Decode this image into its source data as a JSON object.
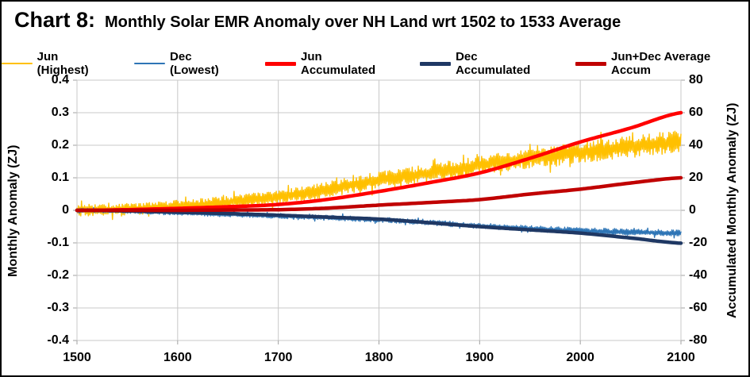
{
  "header": {
    "chart_label": "Chart 8:",
    "title": "Monthly Solar EMR Anomaly over NH Land wrt 1502 to 1533 Average"
  },
  "colors": {
    "jun_monthly": "#FFC000",
    "dec_monthly": "#2E75B6",
    "jun_accum": "#FF0000",
    "dec_accum": "#1F3864",
    "avg_accum": "#C00000",
    "gridline": "#C8C8C8",
    "tick": "#A0A0A0"
  },
  "axes": {
    "left": {
      "title": "Monthly Anomaly (ZJ)",
      "ticks": [
        "0.4",
        "0.3",
        "0.2",
        "0.1",
        "0",
        "-0.1",
        "-0.2",
        "-0.3",
        "-0.4"
      ]
    },
    "right": {
      "title": "Accumulated Monthly Anomaly (ZJ)",
      "ticks": [
        "80",
        "60",
        "40",
        "20",
        "0",
        "-20",
        "-40",
        "-60",
        "-80"
      ]
    },
    "x": {
      "ticks": [
        "1500",
        "1600",
        "1700",
        "1800",
        "1900",
        "2000",
        "2100"
      ]
    }
  },
  "chart_data": {
    "type": "line",
    "title": "Monthly Solar EMR Anomaly over NH Land wrt 1502 to 1533 Average",
    "x_range": [
      1500,
      2100
    ],
    "y_left": {
      "label": "Monthly Anomaly (ZJ)",
      "min": -0.4,
      "max": 0.4,
      "tick_step": 0.1
    },
    "y_right": {
      "label": "Accumulated Monthly Anomaly (ZJ)",
      "min": -80,
      "max": 80,
      "tick_step": 20,
      "scale_vs_left": 200
    },
    "grid": true,
    "legend_position": "top",
    "anchor_years": [
      1500,
      1550,
      1600,
      1650,
      1700,
      1750,
      1800,
      1850,
      1900,
      1950,
      2000,
      2050,
      2100
    ],
    "series": [
      {
        "name": "Jun (Highest)",
        "color": "#FFC000",
        "style": "noisy",
        "width": 1.4,
        "values": [
          0.0,
          0.004,
          0.012,
          0.025,
          0.042,
          0.065,
          0.093,
          0.115,
          0.138,
          0.16,
          0.178,
          0.195,
          0.21
        ],
        "noise_amp": [
          0.018,
          0.018,
          0.019,
          0.02,
          0.022,
          0.024,
          0.026,
          0.027,
          0.028,
          0.03,
          0.032,
          0.034,
          0.035
        ]
      },
      {
        "name": "Dec (Lowest)",
        "color": "#2E75B6",
        "style": "noisy",
        "width": 1.4,
        "values": [
          0.0,
          -0.003,
          -0.008,
          -0.013,
          -0.018,
          -0.023,
          -0.029,
          -0.038,
          -0.047,
          -0.056,
          -0.063,
          -0.067,
          -0.07
        ],
        "noise_amp": [
          0.006,
          0.006,
          0.007,
          0.007,
          0.007,
          0.008,
          0.008,
          0.008,
          0.009,
          0.009,
          0.01,
          0.01,
          0.01
        ]
      },
      {
        "name": "Jun Accumulated",
        "color": "#FF0000",
        "style": "smooth",
        "width": 4.5,
        "values": [
          0.0,
          0.002,
          0.006,
          0.011,
          0.018,
          0.034,
          0.058,
          0.085,
          0.115,
          0.16,
          0.21,
          0.253,
          0.3
        ]
      },
      {
        "name": "Dec Accumulated",
        "color": "#1F3864",
        "style": "smooth",
        "width": 4.5,
        "values": [
          0.0,
          -0.002,
          -0.006,
          -0.01,
          -0.015,
          -0.021,
          -0.027,
          -0.038,
          -0.05,
          -0.06,
          -0.07,
          -0.085,
          -0.101
        ]
      },
      {
        "name": "Jun+Dec Average Accum",
        "color": "#C00000",
        "style": "smooth",
        "width": 4.5,
        "values": [
          0.0,
          0.0,
          0.0,
          0.001,
          0.002,
          0.007,
          0.016,
          0.024,
          0.033,
          0.05,
          0.065,
          0.084,
          0.1
        ]
      }
    ]
  }
}
